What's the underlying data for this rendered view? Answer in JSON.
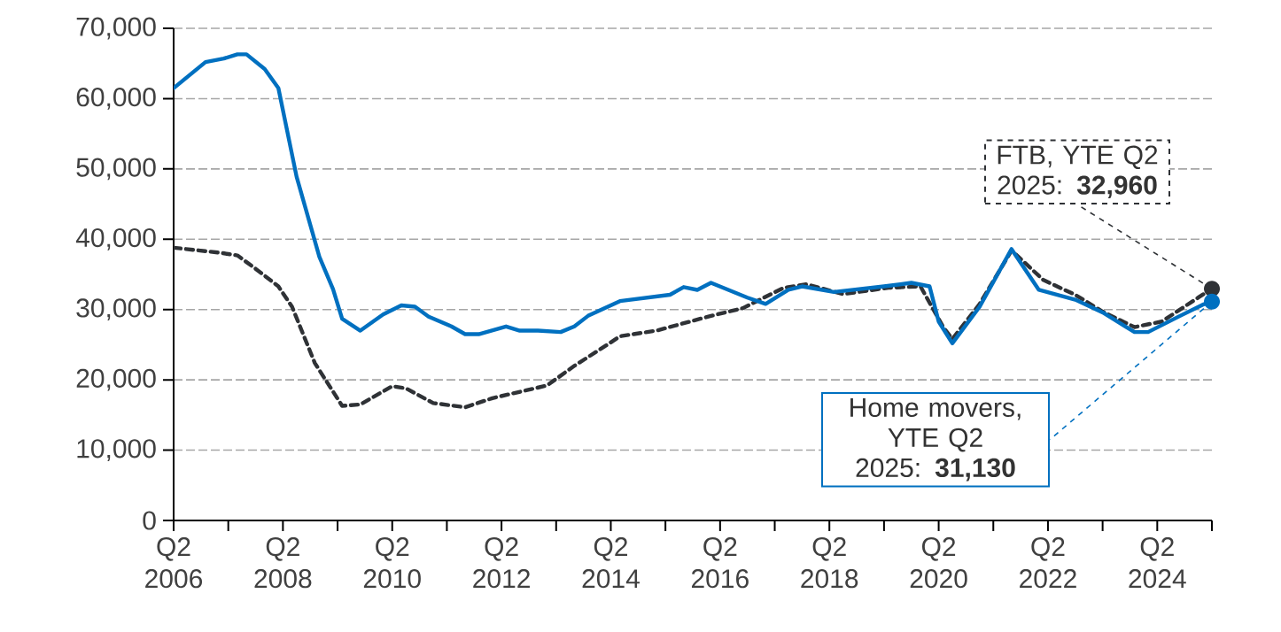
{
  "chart_data": {
    "type": "line",
    "xlim": [
      "2006-04",
      "2025-04"
    ],
    "xticks": [
      {
        "value": "2006-04",
        "label": "Q2 2006"
      },
      {
        "value": "2007-04",
        "label": null
      },
      {
        "value": "2008-04",
        "label": "Q2 2008"
      },
      {
        "value": "2009-04",
        "label": null
      },
      {
        "value": "2010-04",
        "label": "Q2 2010"
      },
      {
        "value": "2011-04",
        "label": null
      },
      {
        "value": "2012-04",
        "label": "Q2 2012"
      },
      {
        "value": "2013-04",
        "label": null
      },
      {
        "value": "2014-04",
        "label": "Q2 2014"
      },
      {
        "value": "2015-04",
        "label": null
      },
      {
        "value": "2016-04",
        "label": "Q2 2016"
      },
      {
        "value": "2017-04",
        "label": null
      },
      {
        "value": "2018-04",
        "label": "Q2 2018"
      },
      {
        "value": "2019-04",
        "label": null
      },
      {
        "value": "2020-04",
        "label": "Q2 2020"
      },
      {
        "value": "2021-04",
        "label": null
      },
      {
        "value": "2022-04",
        "label": "Q2 2022"
      },
      {
        "value": "2023-04",
        "label": null
      },
      {
        "value": "2024-04",
        "label": "Q2 2024"
      },
      {
        "value": "2025-04",
        "label": null
      }
    ],
    "ylim": [
      0,
      70000
    ],
    "yticks": [
      0,
      {
        "value": 10000,
        "label": "10,000"
      },
      {
        "value": 20000,
        "label": "20,000"
      },
      {
        "value": 30000,
        "label": "30,000"
      },
      {
        "value": 40000,
        "label": "40,000"
      },
      {
        "value": 50000,
        "label": "50,000"
      },
      {
        "value": 60000,
        "label": "60,000"
      },
      {
        "value": 70000,
        "label": "70,000"
      }
    ],
    "grid": "y",
    "series": [
      {
        "color": "#2f3236",
        "line_style": "dashed",
        "x": [
          "2006-04",
          "2007-02",
          "2007-06",
          "2007-10",
          "2008-03",
          "2008-06",
          "2008-11",
          "2009-05",
          "2009-09",
          "2010-04",
          "2010-07",
          "2011-01",
          "2011-08",
          "2012-02",
          "2013-02",
          "2013-08",
          "2014-03",
          "2014-06",
          "2015-02",
          "2016-02",
          "2016-09",
          "2017-06",
          "2017-11",
          "2018-07",
          "2019-05",
          "2019-12",
          "2020-05",
          "2020-07",
          "2021-01",
          "2021-08",
          "2022-03",
          "2022-10",
          "2023-04",
          "2023-11",
          "2024-05",
          "2025-01",
          "2025-04"
        ],
        "values": [
          38800,
          38100,
          37700,
          35800,
          33300,
          30400,
          22400,
          16300,
          16500,
          19100,
          18800,
          16700,
          16100,
          17400,
          19200,
          22000,
          24900,
          26200,
          27000,
          29100,
          30200,
          33100,
          33600,
          32200,
          33100,
          33300,
          27500,
          25800,
          30800,
          38400,
          34200,
          32100,
          29700,
          27500,
          28300,
          31700,
          32960
        ]
      },
      {
        "color": "#0070c0",
        "line_style": "solid",
        "x": [
          "2006-04",
          "2006-11",
          "2007-03",
          "2007-06",
          "2007-08",
          "2007-12",
          "2008-03",
          "2008-07",
          "2008-12",
          "2009-03",
          "2009-05",
          "2009-09",
          "2010-02",
          "2010-06",
          "2010-09",
          "2010-12",
          "2011-05",
          "2011-08",
          "2011-11",
          "2012-05",
          "2012-08",
          "2012-12",
          "2013-05",
          "2013-08",
          "2013-11",
          "2014-06",
          "2015-05",
          "2015-08",
          "2015-11",
          "2016-02",
          "2016-10",
          "2017-02",
          "2017-07",
          "2017-10",
          "2018-05",
          "2019-04",
          "2019-10",
          "2020-02",
          "2020-04",
          "2020-07",
          "2021-01",
          "2021-08",
          "2022-02",
          "2022-10",
          "2023-04",
          "2023-11",
          "2024-02",
          "2024-09",
          "2025-02",
          "2025-04"
        ],
        "values": [
          61500,
          65200,
          65700,
          66300,
          66300,
          64200,
          61500,
          48900,
          37500,
          32900,
          28700,
          27000,
          29300,
          30600,
          30400,
          29000,
          27600,
          26500,
          26500,
          27600,
          27000,
          27000,
          26800,
          27600,
          29100,
          31200,
          32100,
          33200,
          32800,
          33800,
          31700,
          30800,
          32800,
          33300,
          32500,
          33300,
          33800,
          33300,
          28300,
          25200,
          30400,
          38600,
          32800,
          31400,
          29600,
          26800,
          26800,
          29100,
          30700,
          31130
        ]
      }
    ],
    "annotations": [
      {
        "text": "FTB, YTE Q2 2025: **32,960**",
        "x": "2025-04",
        "y": 32960
      },
      {
        "text": "Home movers, YTE Q2 2025: **31,130**",
        "x": "2025-04",
        "y": 31130
      }
    ]
  }
}
